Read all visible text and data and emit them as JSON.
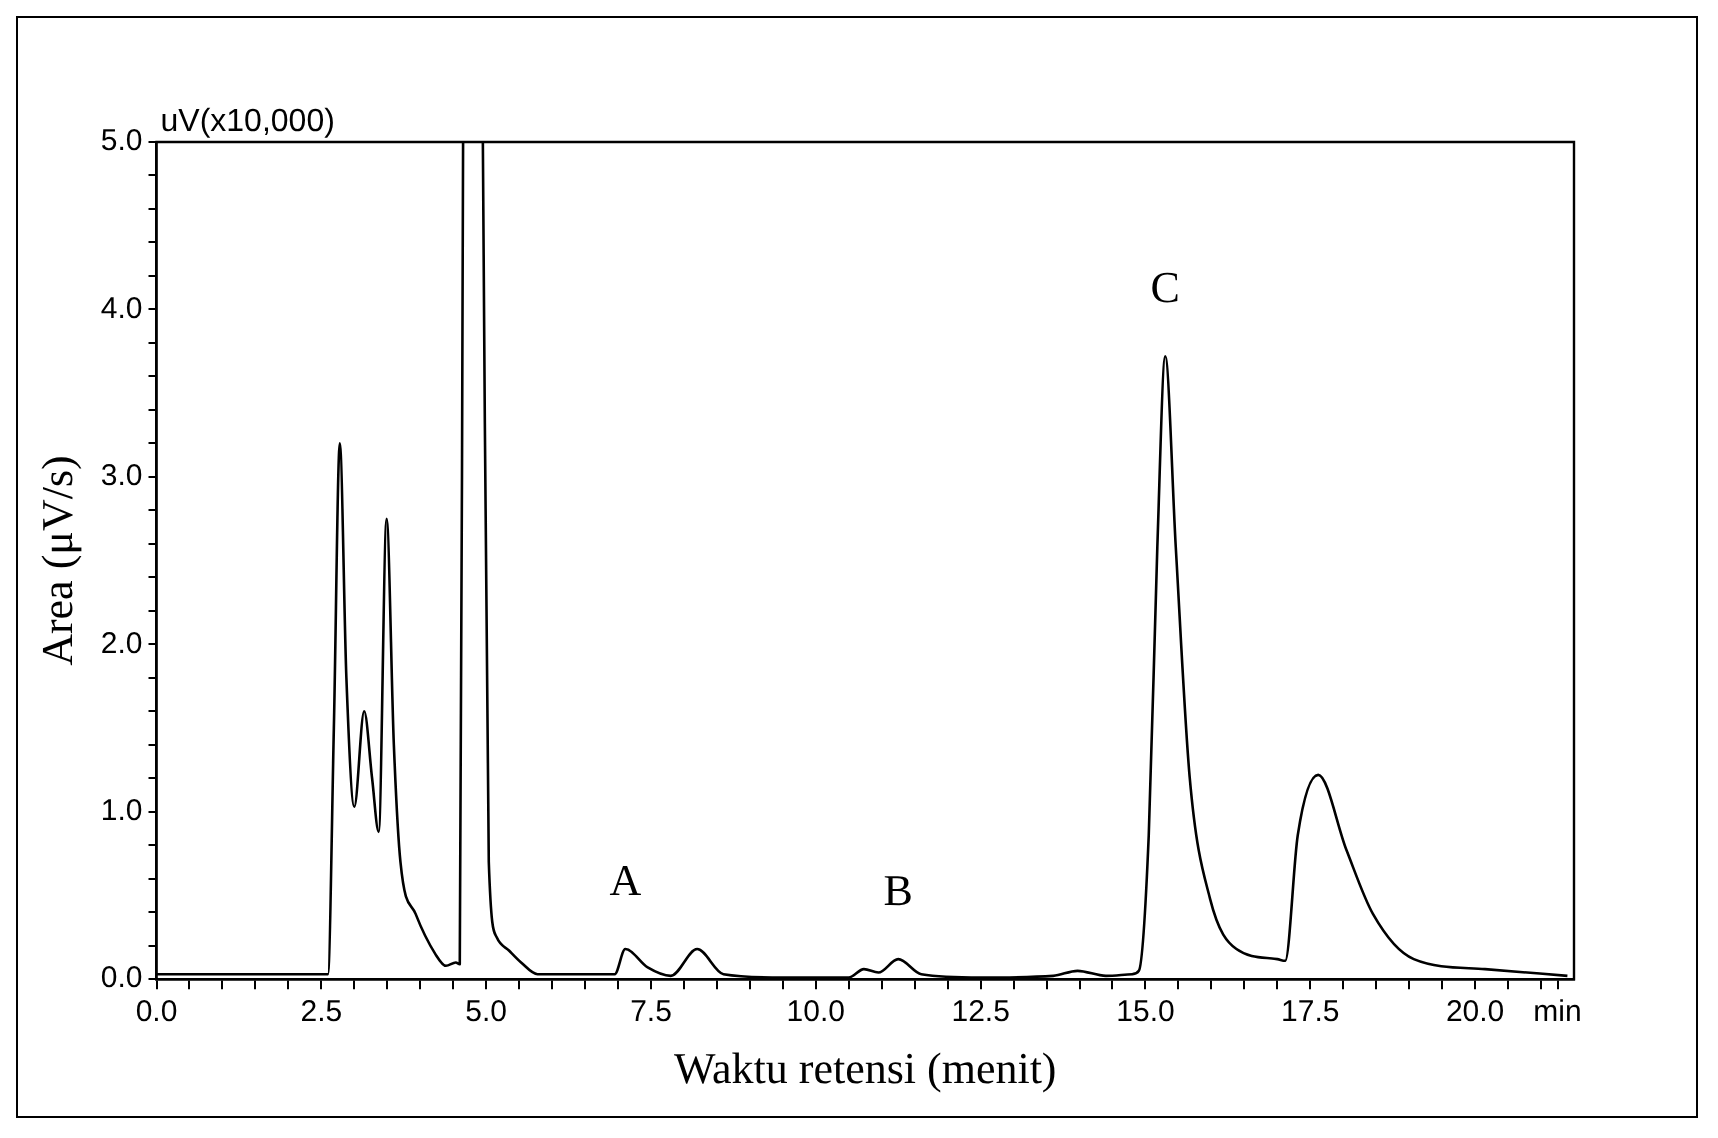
{
  "chart_data": {
    "type": "line",
    "xlabel": "Waktu retensi (menit)",
    "ylabel": "Area (μV/s)",
    "annotations": [
      "uV(x10,000)",
      {
        "text": "A",
        "x": 7.11,
        "y": 0.18
      },
      {
        "text": "B",
        "x": 11.25,
        "y": 0.12
      },
      {
        "text": "C",
        "x": 15.3,
        "y": 3.72
      }
    ],
    "x": [
      0.0,
      1.5,
      2.6,
      2.69,
      2.78,
      2.88,
      3.0,
      3.15,
      3.27,
      3.37,
      3.49,
      3.6,
      3.7,
      3.93,
      4.23,
      4.39,
      4.54,
      4.6,
      4.65,
      4.8,
      4.95,
      5.04,
      5.16,
      5.35,
      5.53,
      5.78,
      6.5,
      6.95,
      7.11,
      7.45,
      7.8,
      8.2,
      8.6,
      9.5,
      10.5,
      10.73,
      10.95,
      11.25,
      11.6,
      12.5,
      13.6,
      13.97,
      14.4,
      14.8,
      14.9,
      15.05,
      15.18,
      15.3,
      15.46,
      15.67,
      15.98,
      16.38,
      17.0,
      17.12,
      17.31,
      17.62,
      18.05,
      18.45,
      19.07,
      20.15,
      21.4
    ],
    "series": [
      {
        "color": "#000000",
        "values": [
          0.03,
          0.03,
          0.03,
          1.5,
          3.2,
          1.8,
          1.03,
          1.6,
          1.2,
          0.88,
          2.75,
          1.4,
          0.7,
          0.39,
          0.15,
          0.08,
          0.1,
          0.09,
          5.0,
          null,
          5.0,
          0.7,
          0.25,
          0.17,
          0.1,
          0.03,
          0.03,
          0.03,
          0.18,
          0.07,
          0.02,
          0.18,
          0.03,
          0.01,
          0.01,
          0.06,
          0.04,
          0.12,
          0.03,
          0.01,
          0.02,
          0.05,
          0.02,
          0.03,
          0.05,
          0.86,
          2.58,
          3.72,
          2.58,
          1.21,
          0.48,
          0.18,
          0.12,
          0.11,
          0.86,
          1.22,
          0.77,
          0.39,
          0.12,
          0.06,
          0.02
        ]
      }
    ],
    "xlim": [
      0,
      21.5
    ],
    "xticks": [
      {
        "value": 0,
        "label": "0.0"
      },
      {
        "value": 0.5,
        "label": null
      },
      {
        "value": 1.0,
        "label": null
      },
      {
        "value": 1.5,
        "label": null
      },
      {
        "value": 2.0,
        "label": null
      },
      {
        "value": 2.5,
        "label": "2.5"
      },
      {
        "value": 3.0,
        "label": null
      },
      {
        "value": 3.5,
        "label": null
      },
      {
        "value": 4.0,
        "label": null
      },
      {
        "value": 4.5,
        "label": null
      },
      {
        "value": 5.0,
        "label": "5.0"
      },
      {
        "value": 5.5,
        "label": null
      },
      {
        "value": 6.0,
        "label": null
      },
      {
        "value": 6.5,
        "label": null
      },
      {
        "value": 7.0,
        "label": null
      },
      {
        "value": 7.5,
        "label": "7.5"
      },
      {
        "value": 8.0,
        "label": null
      },
      {
        "value": 8.5,
        "label": null
      },
      {
        "value": 9.0,
        "label": null
      },
      {
        "value": 9.5,
        "label": null
      },
      {
        "value": 10.0,
        "label": "10.0"
      },
      {
        "value": 10.5,
        "label": null
      },
      {
        "value": 11.0,
        "label": null
      },
      {
        "value": 11.5,
        "label": null
      },
      {
        "value": 12.0,
        "label": null
      },
      {
        "value": 12.5,
        "label": "12.5"
      },
      {
        "value": 13.0,
        "label": null
      },
      {
        "value": 13.5,
        "label": null
      },
      {
        "value": 14.0,
        "label": null
      },
      {
        "value": 14.5,
        "label": null
      },
      {
        "value": 15.0,
        "label": "15.0"
      },
      {
        "value": 15.5,
        "label": null
      },
      {
        "value": 16.0,
        "label": null
      },
      {
        "value": 16.5,
        "label": null
      },
      {
        "value": 17.0,
        "label": null
      },
      {
        "value": 17.5,
        "label": "17.5"
      },
      {
        "value": 18.0,
        "label": null
      },
      {
        "value": 18.5,
        "label": null
      },
      {
        "value": 19.0,
        "label": null
      },
      {
        "value": 19.5,
        "label": null
      },
      {
        "value": 20.0,
        "label": "20.0"
      },
      {
        "value": 20.5,
        "label": null
      },
      {
        "value": 21.0,
        "label": null
      },
      {
        "value": 21.25,
        "label": "min"
      }
    ],
    "ylim": [
      0,
      5.0
    ],
    "yticks": [
      {
        "value": 0,
        "label": "0.0"
      },
      {
        "value": 0.2,
        "label": null
      },
      {
        "value": 0.4,
        "label": null
      },
      {
        "value": 0.6,
        "label": null
      },
      {
        "value": 0.8,
        "label": null
      },
      {
        "value": 1.0,
        "label": "1.0"
      },
      {
        "value": 1.2,
        "label": null
      },
      {
        "value": 1.4,
        "label": null
      },
      {
        "value": 1.6,
        "label": null
      },
      {
        "value": 1.8,
        "label": null
      },
      {
        "value": 2.0,
        "label": "2.0"
      },
      {
        "value": 2.2,
        "label": null
      },
      {
        "value": 2.4,
        "label": null
      },
      {
        "value": 2.6,
        "label": null
      },
      {
        "value": 2.8,
        "label": null
      },
      {
        "value": 3.0,
        "label": "3.0"
      },
      {
        "value": 3.2,
        "label": null
      },
      {
        "value": 3.4,
        "label": null
      },
      {
        "value": 3.6,
        "label": null
      },
      {
        "value": 3.8,
        "label": null
      },
      {
        "value": 4.0,
        "label": "4.0"
      },
      {
        "value": 4.2,
        "label": null
      },
      {
        "value": 4.4,
        "label": null
      },
      {
        "value": 4.6,
        "label": null
      },
      {
        "value": 4.8,
        "label": null
      },
      {
        "value": 5.0,
        "label": "5.0"
      }
    ],
    "grid": false,
    "legend": false
  }
}
